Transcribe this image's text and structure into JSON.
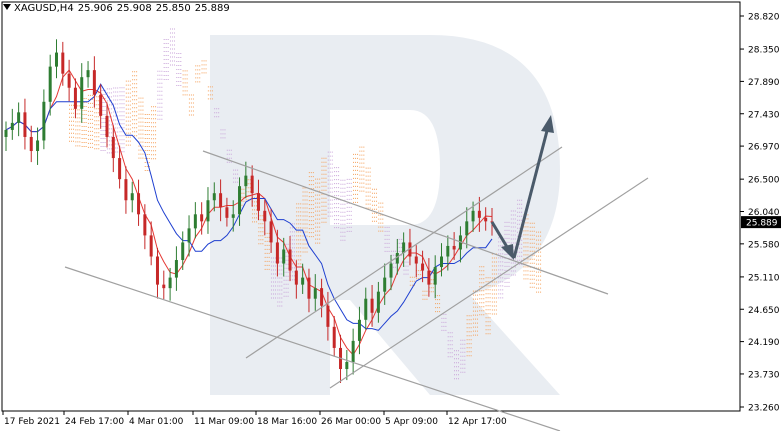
{
  "header": {
    "symbol": "XAGUSD,H4",
    "open": "25.906",
    "high": "25.908",
    "low": "25.850",
    "close": "25.889"
  },
  "colors": {
    "bull": "#2e7d32",
    "bear": "#c62828",
    "tenkan": "#e53935",
    "kijun": "#1e3fd0",
    "cloud_a": "#f5a05a",
    "cloud_b": "#c9a4d9",
    "trend": "#a0a0a0",
    "arrow": "#4a5a6a",
    "price_tag_bg": "#000000",
    "watermark": "#e9edf2"
  },
  "chart_data": {
    "type": "candlestick",
    "title": "",
    "y_axis_ticks": [
      "28.820",
      "28.350",
      "27.890",
      "27.430",
      "26.970",
      "26.500",
      "26.040",
      "25.580",
      "25.110",
      "24.650",
      "24.190",
      "23.730",
      "23.260"
    ],
    "ylim": [
      23.26,
      28.82
    ],
    "x_axis_labels": [
      "17 Feb 2021",
      "24 Feb 17:00",
      "4 Mar 01:00",
      "11 Mar 09:00",
      "18 Mar 16:00",
      "26 Mar 00:00",
      "5 Apr 09:00",
      "12 Apr 17:00"
    ],
    "current_price": "25.889",
    "series_close": [
      27.2,
      27.3,
      27.45,
      27.1,
      26.9,
      27.05,
      27.6,
      28.1,
      28.3,
      28.0,
      27.8,
      27.5,
      27.95,
      28.05,
      27.7,
      27.4,
      27.1,
      26.8,
      26.5,
      26.2,
      26.3,
      26.0,
      25.7,
      25.4,
      25.0,
      24.95,
      25.1,
      25.35,
      25.6,
      25.8,
      26.0,
      25.9,
      26.2,
      26.3,
      26.1,
      25.95,
      26.0,
      26.4,
      26.55,
      26.3,
      26.05,
      25.9,
      25.6,
      25.3,
      25.5,
      25.2,
      25.0,
      25.1,
      24.8,
      24.95,
      24.7,
      24.4,
      24.1,
      23.8,
      23.9,
      24.2,
      24.5,
      24.8,
      24.6,
      24.9,
      25.1,
      25.3,
      25.45,
      25.6,
      25.4,
      25.3,
      25.2,
      25.0,
      25.25,
      25.4,
      25.55,
      25.5,
      25.7,
      25.9,
      26.05,
      25.95,
      25.9,
      25.889
    ],
    "annotations": [
      "descending channel",
      "ascending channel",
      "forecast arrow down to 25.58",
      "forecast arrow up to 27.40"
    ]
  }
}
